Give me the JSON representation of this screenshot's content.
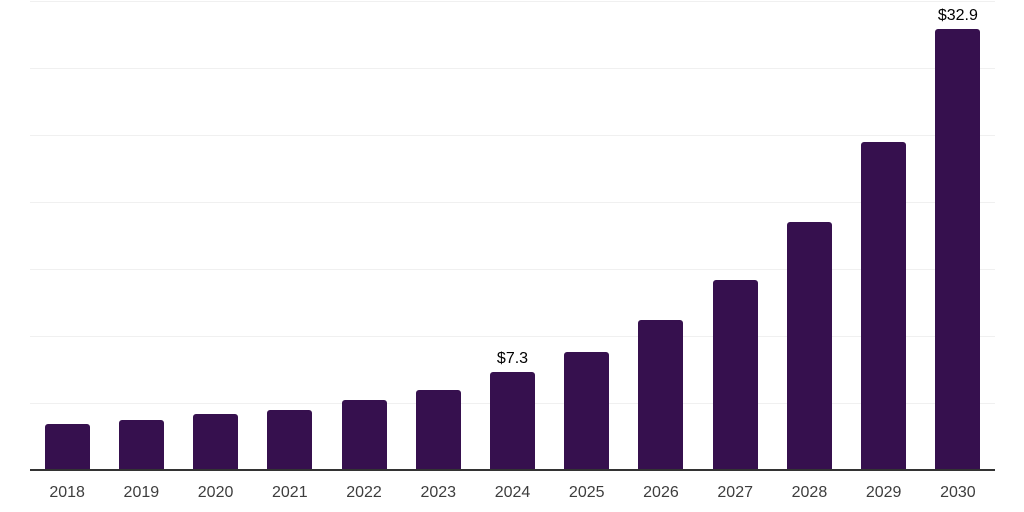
{
  "chart_data": {
    "type": "bar",
    "title": "",
    "xlabel": "",
    "ylabel": "",
    "categories": [
      "2018",
      "2019",
      "2020",
      "2021",
      "2022",
      "2023",
      "2024",
      "2025",
      "2026",
      "2027",
      "2028",
      "2029",
      "2030"
    ],
    "values": [
      3.4,
      3.7,
      4.2,
      4.5,
      5.2,
      6.0,
      7.3,
      8.8,
      11.2,
      14.2,
      18.5,
      24.5,
      32.9
    ],
    "data_labels": {
      "2024": "$7.3",
      "2030": "$32.9"
    },
    "ylim": [
      0,
      35
    ],
    "gridline_step": 5,
    "grid": true,
    "legend": false,
    "y_axis_labels_visible": false,
    "colors": {
      "bar": "#36104e",
      "axis": "#333333",
      "gridline": "#f0f0f0",
      "tick_label": "#3d3d3d",
      "data_label": "#000000",
      "background": "#ffffff"
    }
  }
}
